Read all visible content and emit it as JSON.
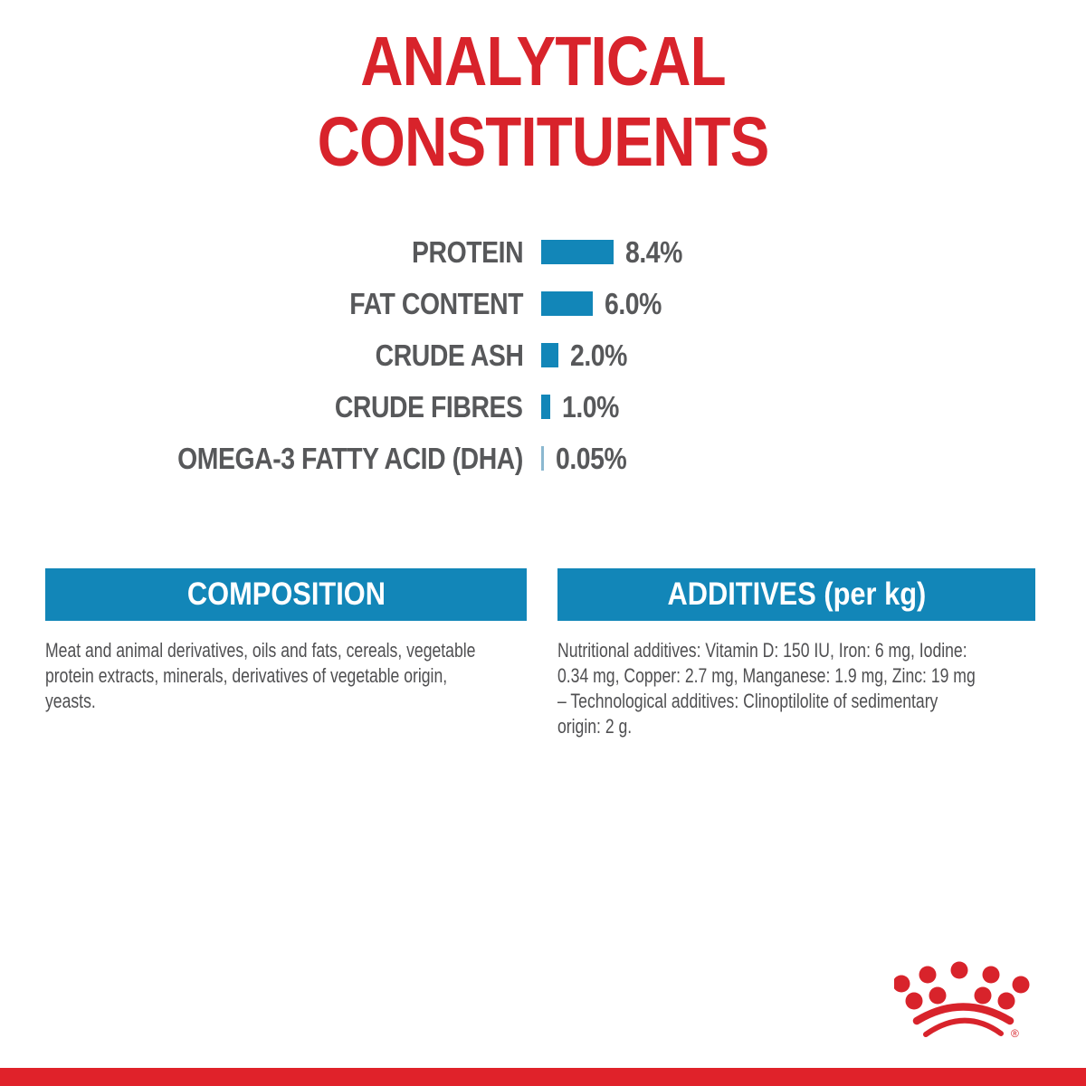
{
  "title": {
    "line1": "ANALYTICAL",
    "line2": "CONSTITUENTS"
  },
  "chart_data": {
    "type": "bar",
    "orientation": "horizontal",
    "title": "Analytical constituents",
    "categories": [
      "PROTEIN",
      "FAT CONTENT",
      "CRUDE ASH",
      "CRUDE FIBRES",
      "OMEGA-3 FATTY ACID (DHA)"
    ],
    "values": [
      8.4,
      6.0,
      2.0,
      1.0,
      0.05
    ],
    "value_labels": [
      "8.4%",
      "6.0%",
      "2.0%",
      "1.0%",
      "0.05%"
    ],
    "unit": "%",
    "xlim": [
      0,
      10
    ],
    "grid": false,
    "legend": false,
    "bar_color": "#1286b8",
    "small_bar_color": "#8bb8d0",
    "label_color": "#57585a"
  },
  "sections": {
    "composition": {
      "header": "COMPOSITION",
      "body": "Meat and animal derivatives, oils and fats, cereals, vegetable protein extracts, minerals, derivatives of vegetable origin, yeasts.",
      "body_lines": [
        "Meat and animal derivatives, oils and fats, cereals, vegetable",
        "protein extracts, minerals, derivatives of vegetable origin,",
        "yeasts."
      ]
    },
    "additives": {
      "header": "ADDITIVES (per kg)",
      "body": "Nutritional additives: Vitamin D: 150 IU, Iron: 6 mg, Iodine: 0.34 mg, Copper: 2.7 mg, Manganese: 1.9 mg, Zinc: 19 mg – Technological additives: Clinoptilolite of sedimentary origin: 2 g.",
      "body_lines": [
        "Nutritional additives: Vitamin D: 150 IU, Iron: 6 mg, Iodine:",
        "0.34 mg, Copper: 2.7 mg, Manganese: 1.9 mg, Zinc: 19 mg",
        "– Technological additives: Clinoptilolite of sedimentary",
        "origin: 2 g."
      ]
    }
  },
  "logo": {
    "name": "royal-canin-crown",
    "registered_mark": "®",
    "color": "#d8232b"
  },
  "colors": {
    "title_red": "#d8232b",
    "bottom_bar_red": "#e0222a",
    "header_blue": "#1286b8",
    "text_gray": "#57585a",
    "body_text_gray": "#4f4f51"
  }
}
